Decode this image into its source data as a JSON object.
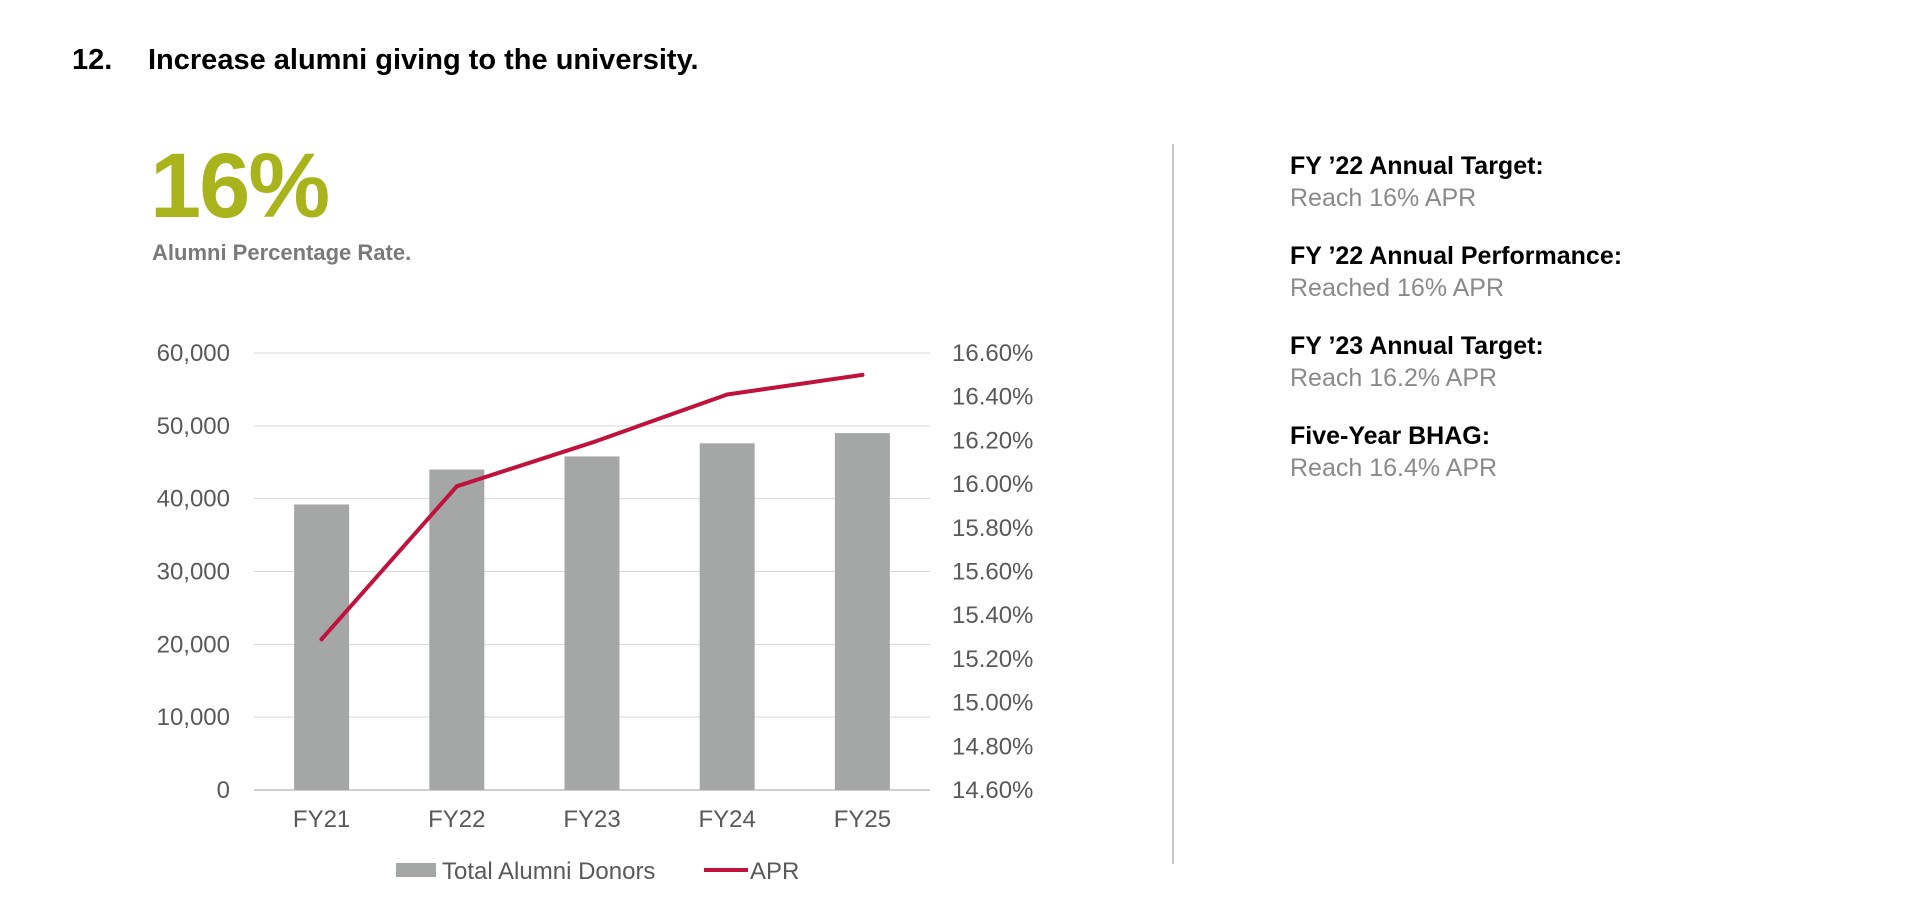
{
  "header": {
    "number": "12.",
    "title": "Increase alumni giving to the university."
  },
  "metric": {
    "value": "16%",
    "caption": "Alumni Percentage Rate.",
    "color": "#a9b41d"
  },
  "targets": [
    {
      "title": "FY ’22 Annual Target:",
      "value": "Reach 16% APR"
    },
    {
      "title": "FY ’22 Annual Performance:",
      "value": "Reached 16% APR"
    },
    {
      "title": "FY ’23 Annual Target:",
      "value": "Reach 16.2% APR"
    },
    {
      "title": "Five-Year BHAG:",
      "value": "Reach 16.4% APR"
    }
  ],
  "chart_data": {
    "type": "bar",
    "categories": [
      "FY21",
      "FY22",
      "FY23",
      "FY24",
      "FY25"
    ],
    "series": [
      {
        "name": "Total Alumni Donors",
        "type": "bar",
        "axis": "left",
        "color": "#a5a7a6",
        "values": [
          39200,
          44000,
          45800,
          47600,
          49000
        ]
      },
      {
        "name": "APR",
        "type": "line",
        "axis": "right",
        "color": "#c0123c",
        "values": [
          15.29,
          15.99,
          16.19,
          16.41,
          16.5
        ]
      }
    ],
    "y_left": {
      "min": 0,
      "max": 60000,
      "ticks": [
        0,
        10000,
        20000,
        30000,
        40000,
        50000,
        60000
      ],
      "tick_labels": [
        "0",
        "10,000",
        "20,000",
        "30,000",
        "40,000",
        "50,000",
        "60,000"
      ]
    },
    "y_right": {
      "min": 14.6,
      "max": 16.6,
      "ticks": [
        14.6,
        14.8,
        15.0,
        15.2,
        15.4,
        15.6,
        15.8,
        16.0,
        16.2,
        16.4,
        16.6
      ],
      "tick_labels": [
        "14.60%",
        "14.80%",
        "15.00%",
        "15.20%",
        "15.40%",
        "15.60%",
        "15.80%",
        "16.00%",
        "16.20%",
        "16.40%",
        "16.60%"
      ]
    },
    "grid": true,
    "legend_position": "bottom"
  }
}
